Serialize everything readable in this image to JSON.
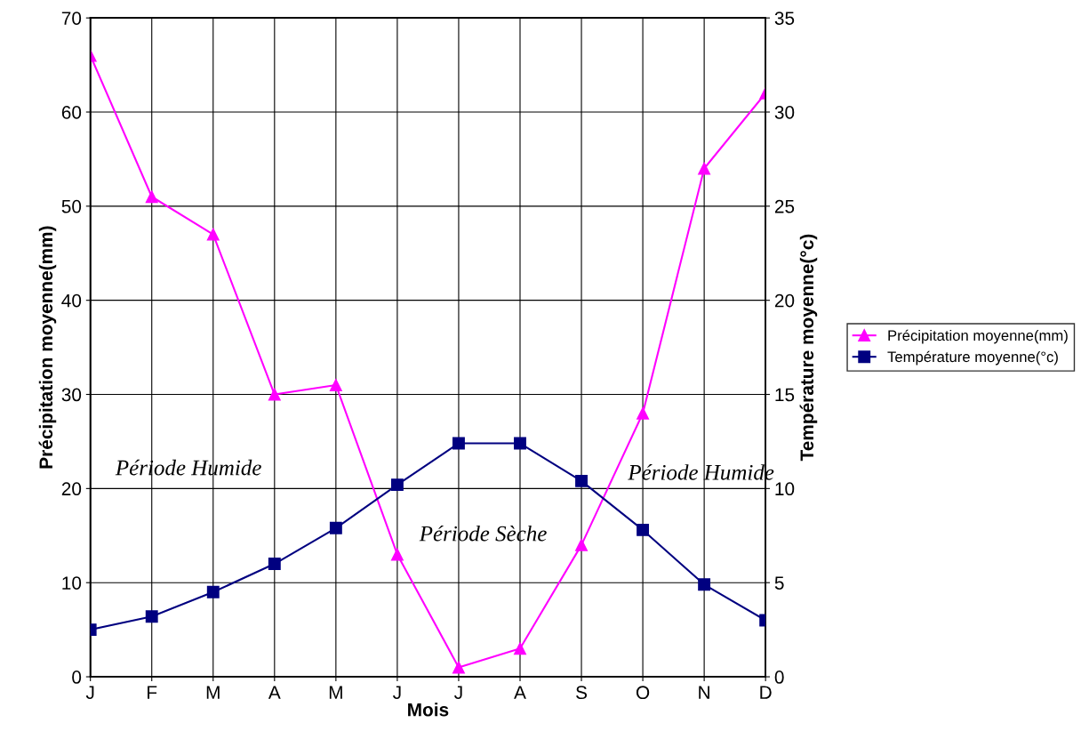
{
  "chart_data": {
    "type": "line",
    "xlabel": "Mois",
    "ylabel": "Précipitation moyenne(mm)",
    "y2label": "Température moyenne(°c)",
    "categories": [
      "J",
      "F",
      "M",
      "A",
      "M",
      "J",
      "J",
      "A",
      "S",
      "O",
      "N",
      "D"
    ],
    "series": [
      {
        "name": "Précipitation moyenne(mm)",
        "color": "#ff00ff",
        "marker": "triangle",
        "values": [
          66,
          51,
          47,
          30,
          31,
          13,
          1,
          3,
          14,
          28,
          54,
          62
        ]
      },
      {
        "name": "Température moyenne(°c)",
        "color": "#000080",
        "marker": "square",
        "axis": "y2",
        "values": [
          2.5,
          3.2,
          4.5,
          6,
          7.9,
          10.2,
          12.4,
          12.4,
          10.4,
          7.8,
          4.9,
          3.0
        ]
      }
    ],
    "ylim": [
      0,
      70
    ],
    "yticks": [
      0,
      10,
      20,
      30,
      40,
      50,
      60,
      70
    ],
    "y2lim": [
      0,
      35
    ],
    "y2ticks": [
      0,
      5,
      10,
      15,
      20,
      25,
      30,
      35
    ],
    "grid": true,
    "legend": "right",
    "line_style": "solid",
    "annotations": [
      "Période Humide",
      "Période Sèche",
      "Période Humide"
    ]
  }
}
